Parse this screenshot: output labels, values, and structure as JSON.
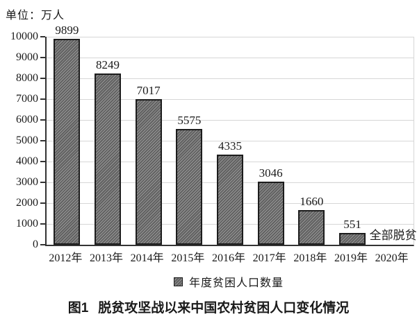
{
  "unit_label": "单位：万人",
  "legend": {
    "marker": "hatched-square",
    "label": "年度贫困人口数量"
  },
  "caption": {
    "figure_label": "图1",
    "text": "脱贫攻坚战以来中国农村贫困人口变化情况"
  },
  "chart_data": {
    "type": "bar",
    "title": "图1 脱贫攻坚战以来中国农村贫困人口变化情况",
    "unit": "万人",
    "categories": [
      "2012年",
      "2013年",
      "2014年",
      "2015年",
      "2016年",
      "2017年",
      "2018年",
      "2019年",
      "2020年"
    ],
    "values": [
      9899,
      8249,
      7017,
      5575,
      4335,
      3046,
      1660,
      551,
      null
    ],
    "data_labels": [
      "9899",
      "8249",
      "7017",
      "5575",
      "4335",
      "3046",
      "1660",
      "551",
      ""
    ],
    "annotation": {
      "category": "2020年",
      "text": "全部脱贫"
    },
    "series_name": "年度贫困人口数量",
    "xlabel": "",
    "ylabel": "",
    "ylim": [
      0,
      10000
    ],
    "ytick_step": 1000,
    "yticks": [
      0,
      1000,
      2000,
      3000,
      4000,
      5000,
      6000,
      7000,
      8000,
      9000,
      10000
    ],
    "grid": "horizontal",
    "legend_position": "bottom",
    "bar_color": "#616161",
    "bar_hatch": "diagonal",
    "bar_border_color": "#1c1c1c",
    "gridline_color": "#d6d6d6"
  }
}
